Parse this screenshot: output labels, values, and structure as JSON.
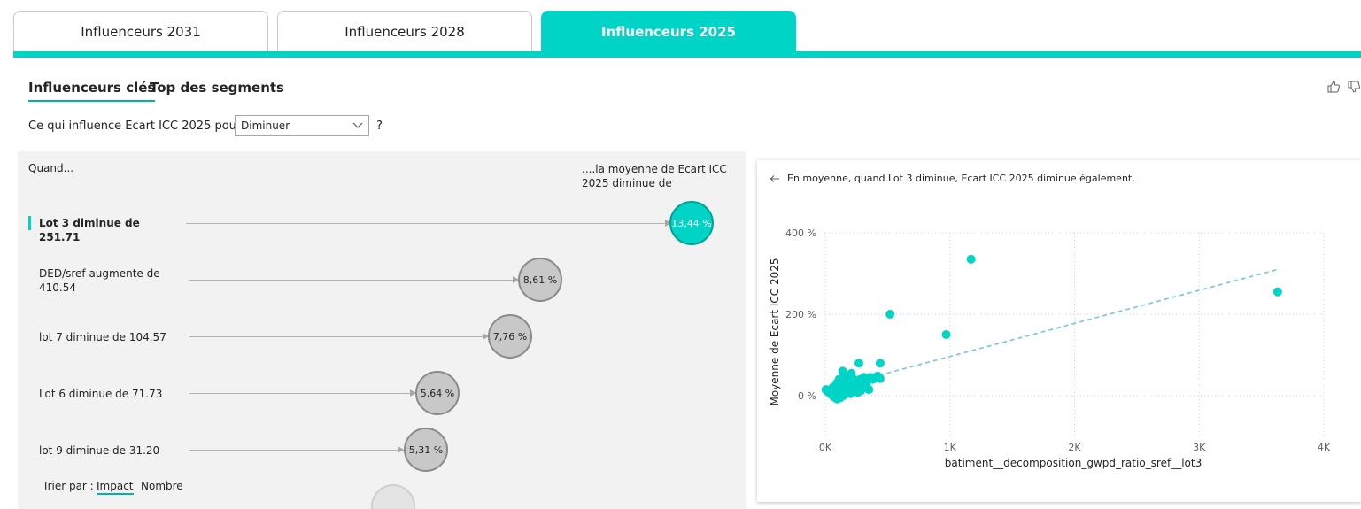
{
  "tabs": [
    {
      "label": "Influenceurs 2031",
      "active": false
    },
    {
      "label": "Influenceurs 2028",
      "active": false
    },
    {
      "label": "Influenceurs 2025",
      "active": true
    }
  ],
  "subtabs": {
    "key_influencers": "Influenceurs clés",
    "top_segments": "Top des segments"
  },
  "toolbar_icons": [
    "thumbs-up-icon",
    "thumbs-down-icon"
  ],
  "question": {
    "prefix": "Ce qui influence Ecart ICC 2025 pour",
    "dropdown_value": "Diminuer",
    "suffix": "?"
  },
  "influencers": {
    "header_when": "Quand...",
    "header_avg": "....la moyenne de Ecart ICC 2025 diminue de",
    "rows": [
      {
        "label": "Lot 3 diminue de 251.71",
        "value": "13,44 %",
        "impact": 13.44,
        "selected": true
      },
      {
        "label": "DED/sref augmente de 410.54",
        "value": "8,61 %",
        "impact": 8.61,
        "selected": false
      },
      {
        "label": "lot 7 diminue de 104.57",
        "value": "7,76 %",
        "impact": 7.76,
        "selected": false
      },
      {
        "label": "Lot 6 diminue de 71.73",
        "value": "5,64 %",
        "impact": 5.64,
        "selected": false
      },
      {
        "label": "lot 9 diminue de 31.20",
        "value": "5,31 %",
        "impact": 5.31,
        "selected": false
      }
    ],
    "sort": {
      "label": "Trier par :",
      "options": [
        "Impact",
        "Nombre"
      ],
      "active": "Impact"
    }
  },
  "detail": {
    "title": "En moyenne, quand Lot 3 diminue, Ecart ICC 2025 diminue également."
  },
  "chart_data": {
    "type": "scatter",
    "xlabel": "batiment__decomposition_gwpd_ratio_sref__lot3",
    "ylabel": "Moyenne de Ecart ICC 2025",
    "xlim": [
      0,
      4000
    ],
    "ylim": [
      -100,
      400
    ],
    "x_ticks": [
      {
        "value": 0,
        "label": "0K"
      },
      {
        "value": 1000,
        "label": "1K"
      },
      {
        "value": 2000,
        "label": "2K"
      },
      {
        "value": 3000,
        "label": "3K"
      },
      {
        "value": 4000,
        "label": "4K"
      }
    ],
    "y_ticks": [
      {
        "value": 0,
        "label": "0 %"
      },
      {
        "value": 200,
        "label": "200 %"
      },
      {
        "value": 400,
        "label": "400 %"
      }
    ],
    "grid": true,
    "color": "#00d4c6",
    "trend_color": "#6ec8e8",
    "trendline": [
      [
        0,
        15
      ],
      [
        3630,
        310
      ]
    ],
    "points": [
      [
        5,
        15
      ],
      [
        20,
        10
      ],
      [
        40,
        5
      ],
      [
        60,
        0
      ],
      [
        80,
        -5
      ],
      [
        100,
        5
      ],
      [
        120,
        15
      ],
      [
        140,
        25
      ],
      [
        60,
        20
      ],
      [
        90,
        30
      ],
      [
        110,
        40
      ],
      [
        130,
        35
      ],
      [
        150,
        50
      ],
      [
        170,
        45
      ],
      [
        190,
        30
      ],
      [
        210,
        55
      ],
      [
        230,
        40
      ],
      [
        250,
        25
      ],
      [
        270,
        35
      ],
      [
        290,
        20
      ],
      [
        310,
        45
      ],
      [
        330,
        30
      ],
      [
        350,
        15
      ],
      [
        70,
        -3
      ],
      [
        95,
        -8
      ],
      [
        120,
        -5
      ],
      [
        145,
        0
      ],
      [
        160,
        10
      ],
      [
        180,
        20
      ],
      [
        200,
        5
      ],
      [
        220,
        15
      ],
      [
        240,
        10
      ],
      [
        260,
        30
      ],
      [
        280,
        40
      ],
      [
        300,
        25
      ],
      [
        320,
        35
      ],
      [
        340,
        40
      ],
      [
        360,
        45
      ],
      [
        380,
        40
      ],
      [
        400,
        45
      ],
      [
        420,
        48
      ],
      [
        440,
        42
      ],
      [
        85,
        12
      ],
      [
        105,
        22
      ],
      [
        125,
        8
      ],
      [
        150,
        18
      ],
      [
        175,
        28
      ],
      [
        195,
        38
      ],
      [
        215,
        22
      ],
      [
        235,
        12
      ],
      [
        260,
        8
      ],
      [
        285,
        12
      ],
      [
        140,
        60
      ],
      [
        270,
        80
      ],
      [
        440,
        80
      ],
      [
        520,
        200
      ],
      [
        970,
        150
      ],
      [
        1170,
        335
      ],
      [
        3630,
        255
      ]
    ]
  }
}
